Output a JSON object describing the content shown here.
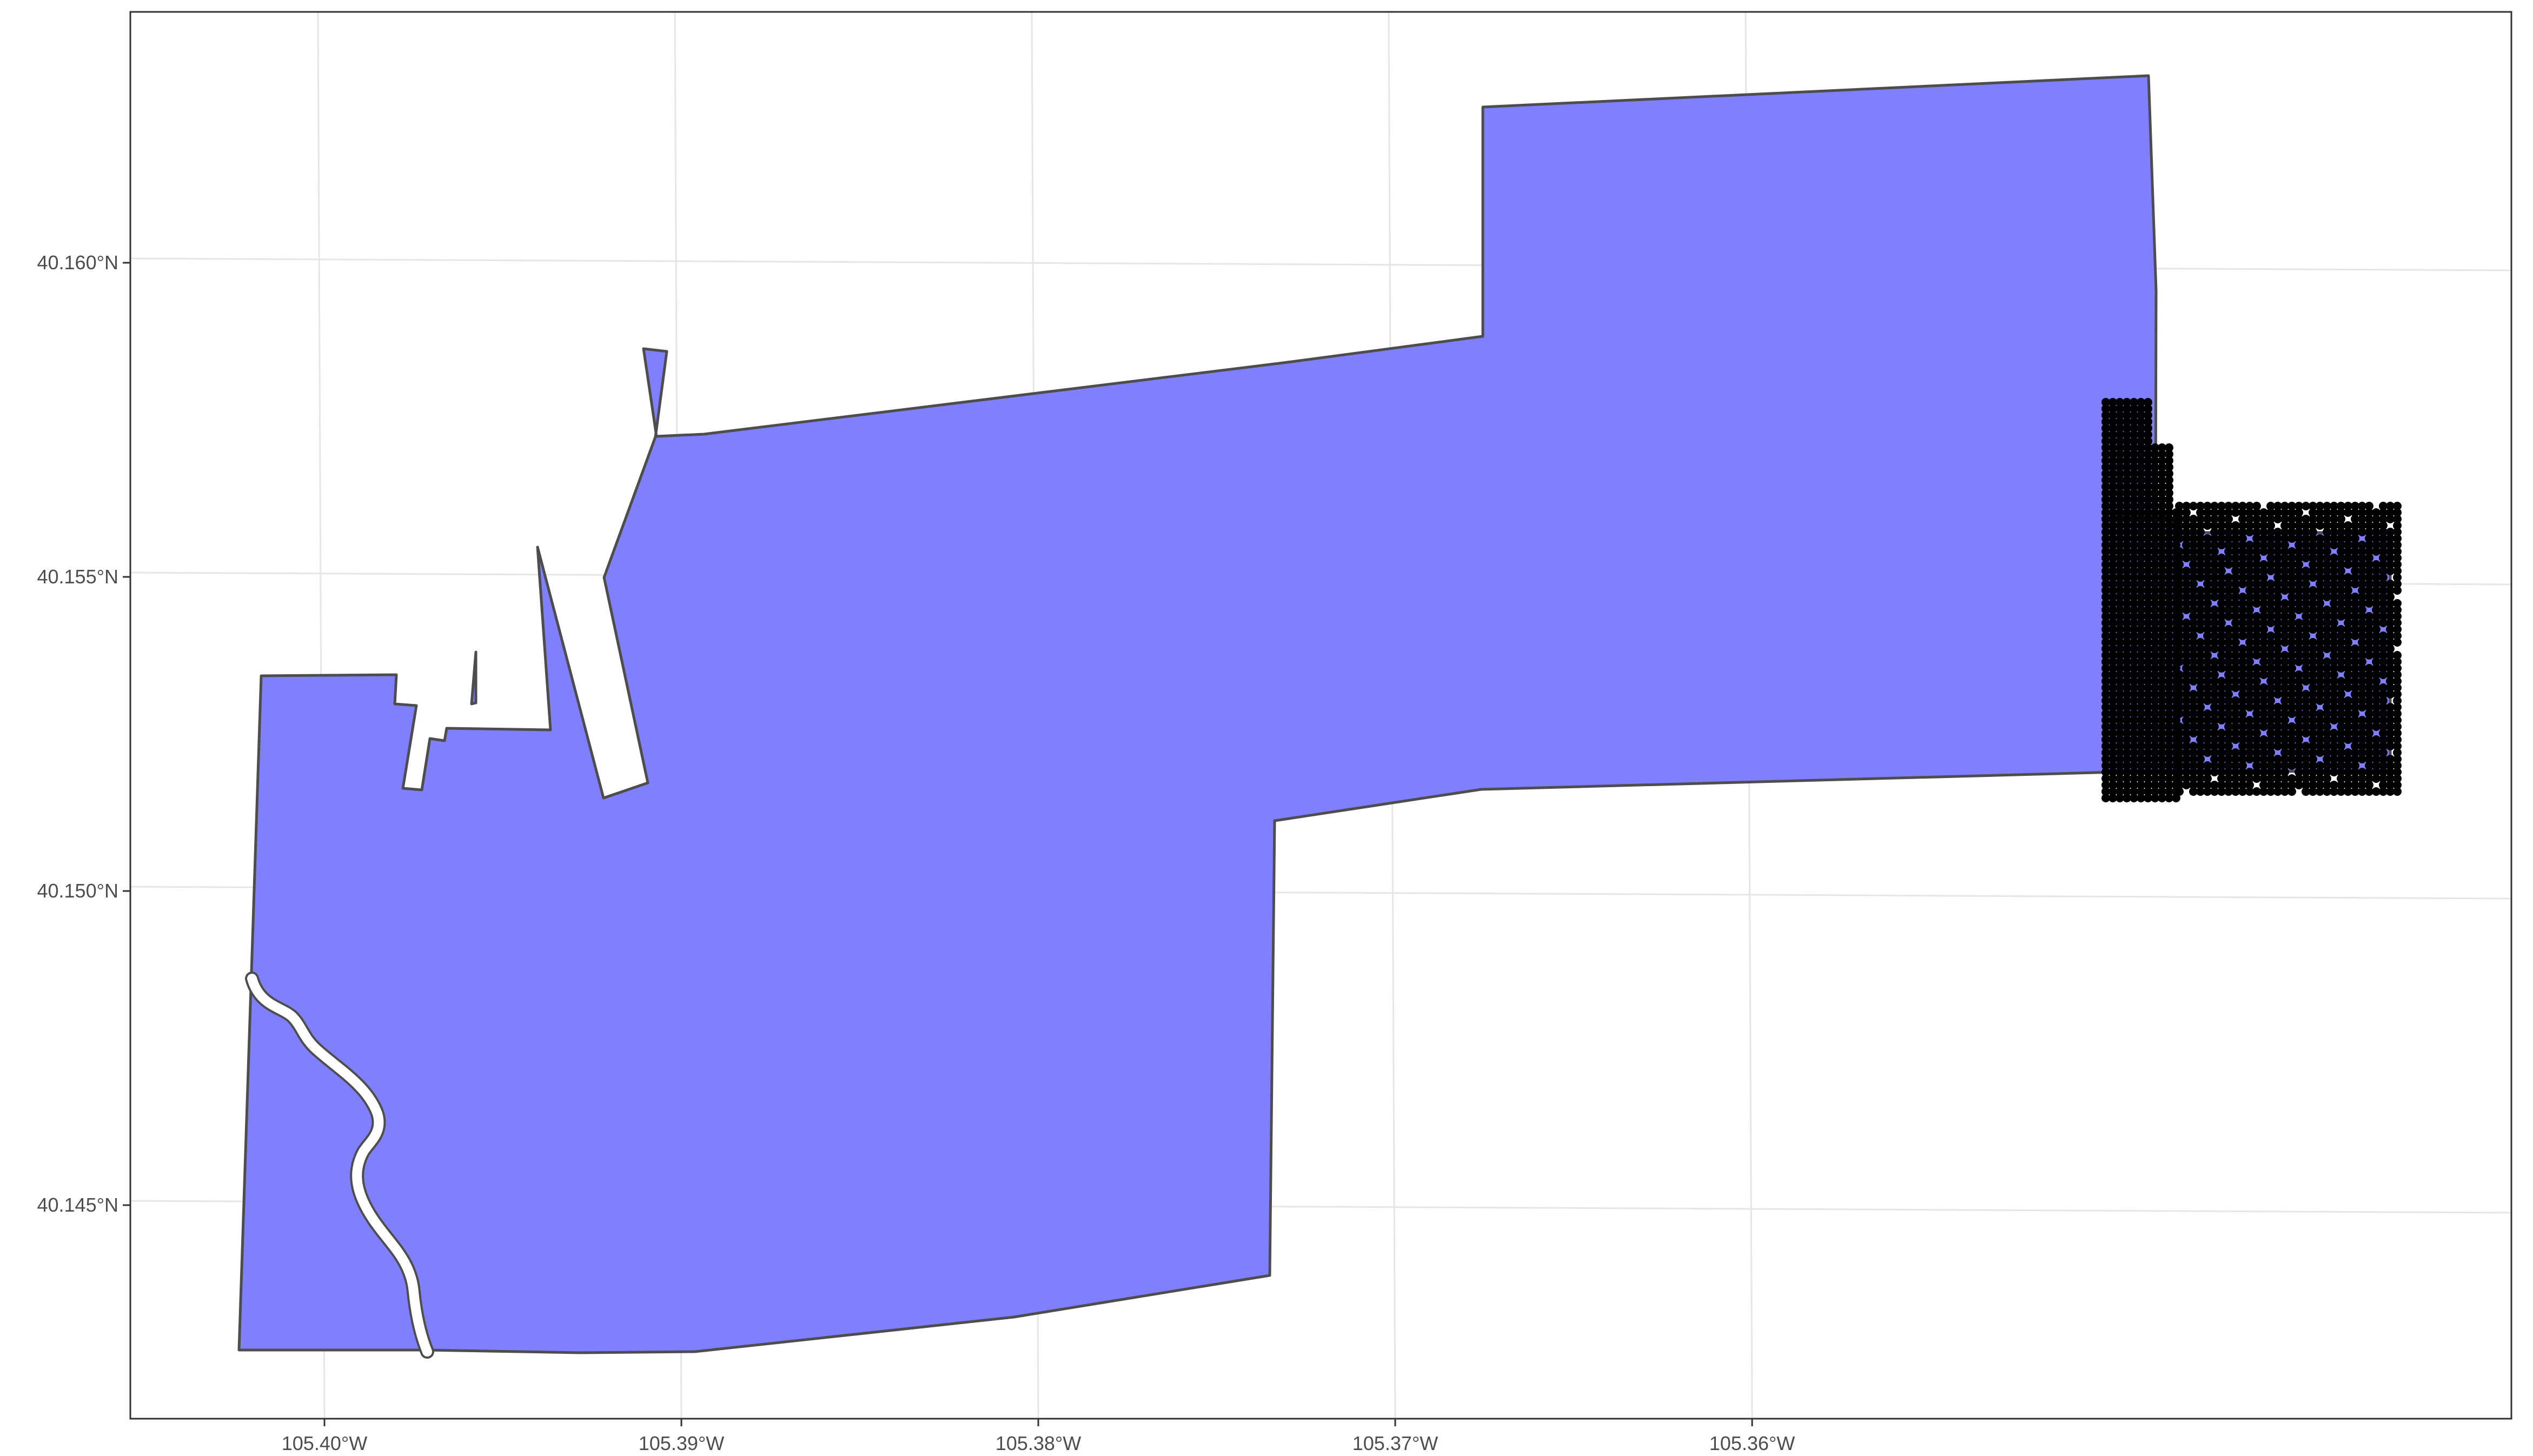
{
  "map": {
    "x_axis": {
      "ticks": [
        {
          "value": -105.4,
          "label": "105.40°W"
        },
        {
          "value": -105.39,
          "label": "105.39°W"
        },
        {
          "value": -105.38,
          "label": "105.38°W"
        },
        {
          "value": -105.37,
          "label": "105.37°W"
        },
        {
          "value": -105.36,
          "label": "105.36°W"
        }
      ]
    },
    "y_axis": {
      "ticks": [
        {
          "value": 40.16,
          "label": "40.160°N"
        },
        {
          "value": 40.155,
          "label": "40.155°N"
        },
        {
          "value": 40.15,
          "label": "40.150°N"
        },
        {
          "value": 40.145,
          "label": "40.145°N"
        }
      ]
    },
    "polygon_fill_color": "#8080ff",
    "polygon_outline_color": "#4d4d4d",
    "point_color": "#000000",
    "grid": true,
    "legend": "none"
  }
}
